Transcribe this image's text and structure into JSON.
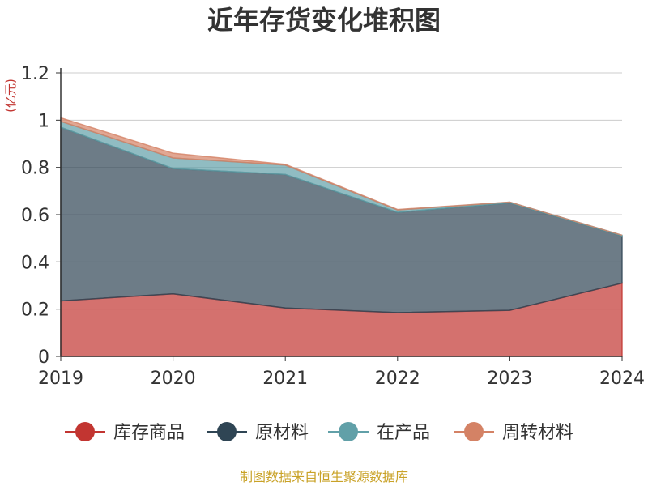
{
  "chart_data": {
    "type": "area",
    "stacked": true,
    "title": "近年存货变化堆积图",
    "unit_label": "(亿元)",
    "x": [
      "2019",
      "2020",
      "2021",
      "2022",
      "2023",
      "2024"
    ],
    "ylim": [
      0,
      1.2
    ],
    "yticks": [
      "0",
      "0.2",
      "0.4",
      "0.6",
      "0.8",
      "1",
      "1.2"
    ],
    "grid": true,
    "legend_position": "bottom",
    "series": [
      {
        "name": "库存商品",
        "color": "#c23531",
        "values": [
          0.235,
          0.265,
          0.205,
          0.185,
          0.195,
          0.31
        ]
      },
      {
        "name": "原材料",
        "color": "#2f4554",
        "values": [
          0.735,
          0.53,
          0.565,
          0.425,
          0.455,
          0.2
        ]
      },
      {
        "name": "在产品",
        "color": "#61a0a8",
        "values": [
          0.025,
          0.045,
          0.04,
          0.01,
          0.003,
          0.003
        ]
      },
      {
        "name": "周转材料",
        "color": "#d48265",
        "values": [
          0.015,
          0.02,
          0.003,
          0.002,
          0.0,
          0.0
        ]
      }
    ]
  },
  "footer": {
    "source": "制图数据来自恒生聚源数据库"
  }
}
